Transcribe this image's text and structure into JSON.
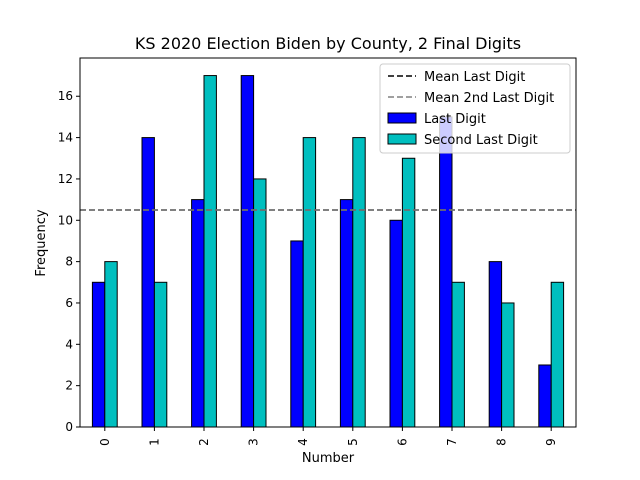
{
  "chart_data": {
    "type": "bar",
    "title": "KS 2020 Election Biden by County, 2 Final Digits",
    "xlabel": "Number",
    "ylabel": "Frequency",
    "categories": [
      "0",
      "1",
      "2",
      "3",
      "4",
      "5",
      "6",
      "7",
      "8",
      "9"
    ],
    "series": [
      {
        "name": "Last Digit",
        "color": "#0000ff",
        "values": [
          7,
          14,
          11,
          17,
          9,
          11,
          10,
          15,
          8,
          3
        ]
      },
      {
        "name": "Second Last Digit",
        "color": "#00bfbf",
        "values": [
          8,
          7,
          17,
          12,
          14,
          14,
          13,
          7,
          6,
          7
        ]
      }
    ],
    "reference_lines": [
      {
        "name": "Mean Last Digit",
        "value": 10.5,
        "color": "#000000",
        "style": "dashed"
      },
      {
        "name": "Mean 2nd Last Digit",
        "value": 10.5,
        "color": "#808080",
        "style": "dashed"
      }
    ],
    "ylim": [
      0,
      17.85
    ],
    "yticks": [
      0,
      2,
      4,
      6,
      8,
      10,
      12,
      14,
      16
    ],
    "grid": false,
    "legend_position": "top-right"
  }
}
